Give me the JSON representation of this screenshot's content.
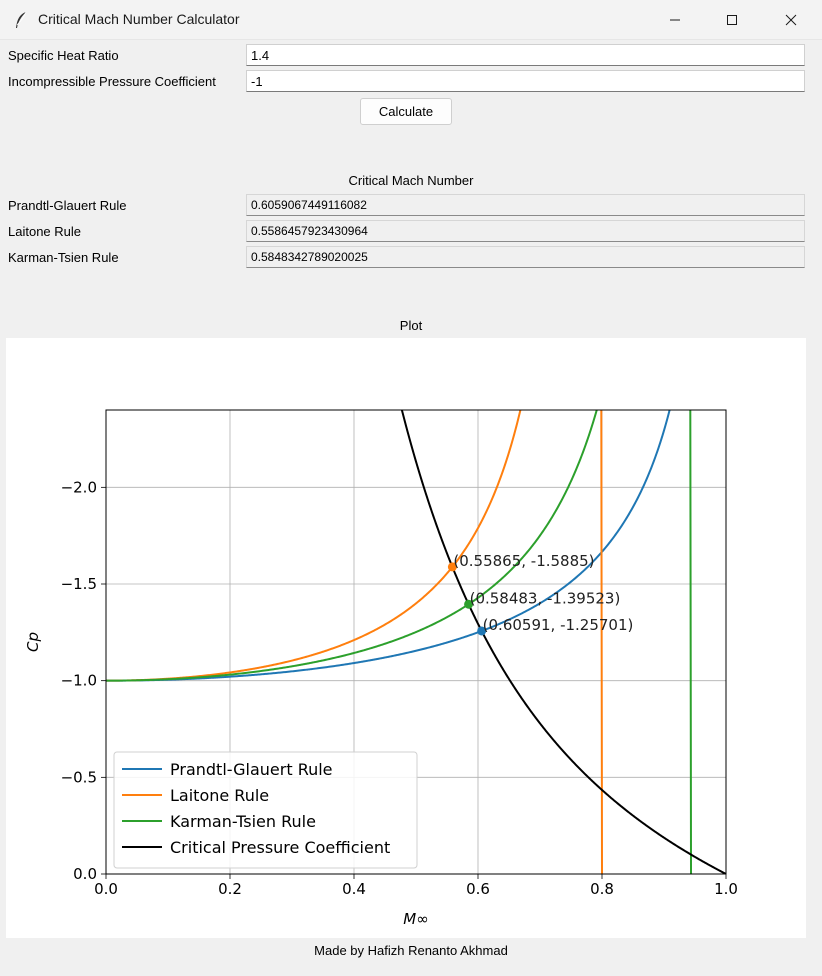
{
  "window": {
    "title": "Critical Mach Number Calculator"
  },
  "inputs": {
    "gamma_label": "Specific Heat Ratio",
    "gamma_value": "1.4",
    "cp0_label": "Incompressible Pressure Coefficient",
    "cp0_value": "-1",
    "calculate_label": "Calculate"
  },
  "results": {
    "heading": "Critical Mach Number",
    "rows": [
      {
        "label": "Prandtl-Glauert Rule",
        "value": "0.6059067449116082"
      },
      {
        "label": "Laitone Rule",
        "value": "0.5586457923430964"
      },
      {
        "label": "Karman-Tsien Rule",
        "value": "0.5848342789020025"
      }
    ]
  },
  "plot_heading": "Plot",
  "footer": "Made by Hafizh Renanto Akhmad",
  "chart_data": {
    "type": "line",
    "xlabel": "M∞",
    "ylabel": "Cp",
    "xlim": [
      0,
      1
    ],
    "ylim": [
      0,
      -2.4
    ],
    "y_inverted": true,
    "x_ticks": [
      "0.0",
      "0.2",
      "0.4",
      "0.6",
      "0.8",
      "1.0"
    ],
    "y_ticks": [
      "0.0",
      "−0.5",
      "−1.0",
      "−1.5",
      "−2.0"
    ],
    "grid": true,
    "legend_position": "lower-left",
    "gamma": 1.4,
    "cp0": -1,
    "series": [
      {
        "name": "Prandtl-Glauert Rule",
        "color": "#1f77b4"
      },
      {
        "name": "Laitone Rule",
        "color": "#ff7f0e"
      },
      {
        "name": "Karman-Tsien Rule",
        "color": "#2ca02c"
      },
      {
        "name": "Critical Pressure Coefficient",
        "color": "#000000"
      }
    ],
    "annotations": [
      {
        "x": 0.55865,
        "y": -1.5885,
        "label": "(0.55865, -1.5885)",
        "color": "#ff7f0e"
      },
      {
        "x": 0.58483,
        "y": -1.39523,
        "label": "(0.58483, -1.39523)",
        "color": "#2ca02c"
      },
      {
        "x": 0.60591,
        "y": -1.25701,
        "label": "(0.60591, -1.25701)",
        "color": "#1f77b4"
      }
    ]
  }
}
